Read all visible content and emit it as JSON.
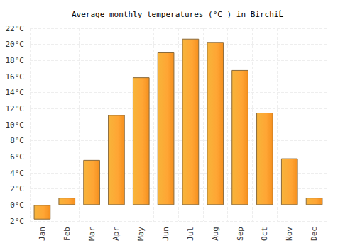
{
  "chart_data": {
    "type": "bar",
    "title": "Average monthly temperatures (°C ) in BirchiĹ",
    "categories": [
      "Jan",
      "Feb",
      "Mar",
      "Apr",
      "May",
      "Jun",
      "Jul",
      "Aug",
      "Sep",
      "Oct",
      "Nov",
      "Dec"
    ],
    "values": [
      -1.8,
      0.9,
      5.6,
      11.2,
      15.9,
      19.0,
      20.7,
      20.3,
      16.8,
      11.5,
      5.8,
      0.9
    ],
    "color": "#ffa534",
    "ylim": [
      -2,
      22
    ],
    "yticks": [
      {
        "value": -2,
        "label": "-2°C"
      },
      {
        "value": 0,
        "label": "0°C"
      },
      {
        "value": 2,
        "label": "2°C"
      },
      {
        "value": 4,
        "label": "4°C"
      },
      {
        "value": 6,
        "label": "6°C"
      },
      {
        "value": 8,
        "label": "8°C"
      },
      {
        "value": 10,
        "label": "10°C"
      },
      {
        "value": 12,
        "label": "12°C"
      },
      {
        "value": 14,
        "label": "14°C"
      },
      {
        "value": 16,
        "label": "16°C"
      },
      {
        "value": 18,
        "label": "18°C"
      },
      {
        "value": 20,
        "label": "20°C"
      },
      {
        "value": 22,
        "label": "22°C"
      }
    ],
    "grid": true
  }
}
